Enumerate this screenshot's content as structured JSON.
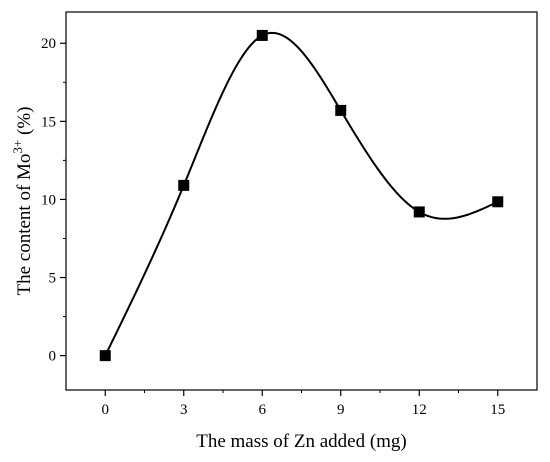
{
  "chart_data": {
    "type": "line",
    "title": "",
    "xlabel": "The mass of Zn added (mg)",
    "ylabel": {
      "prefix": "The content of Mo",
      "superscript": "3+",
      "suffix": " (%)"
    },
    "xlim": [
      -1.5,
      16.5
    ],
    "ylim": [
      -2.2,
      22
    ],
    "xticks": [
      0,
      3,
      6,
      9,
      12,
      15
    ],
    "yticks": [
      0,
      5,
      10,
      15,
      20
    ],
    "xtick_labels": [
      "0",
      "3",
      "6",
      "9",
      "12",
      "15"
    ],
    "ytick_labels": [
      "0",
      "5",
      "10",
      "15",
      "20"
    ],
    "series": [
      {
        "x": [
          0,
          3,
          6,
          9,
          12,
          15
        ],
        "y": [
          0,
          10.9,
          20.5,
          15.7,
          9.2,
          9.85
        ],
        "marker": "square",
        "line": "smooth",
        "color": "#000000"
      }
    ],
    "grid": false,
    "legend": "none"
  }
}
